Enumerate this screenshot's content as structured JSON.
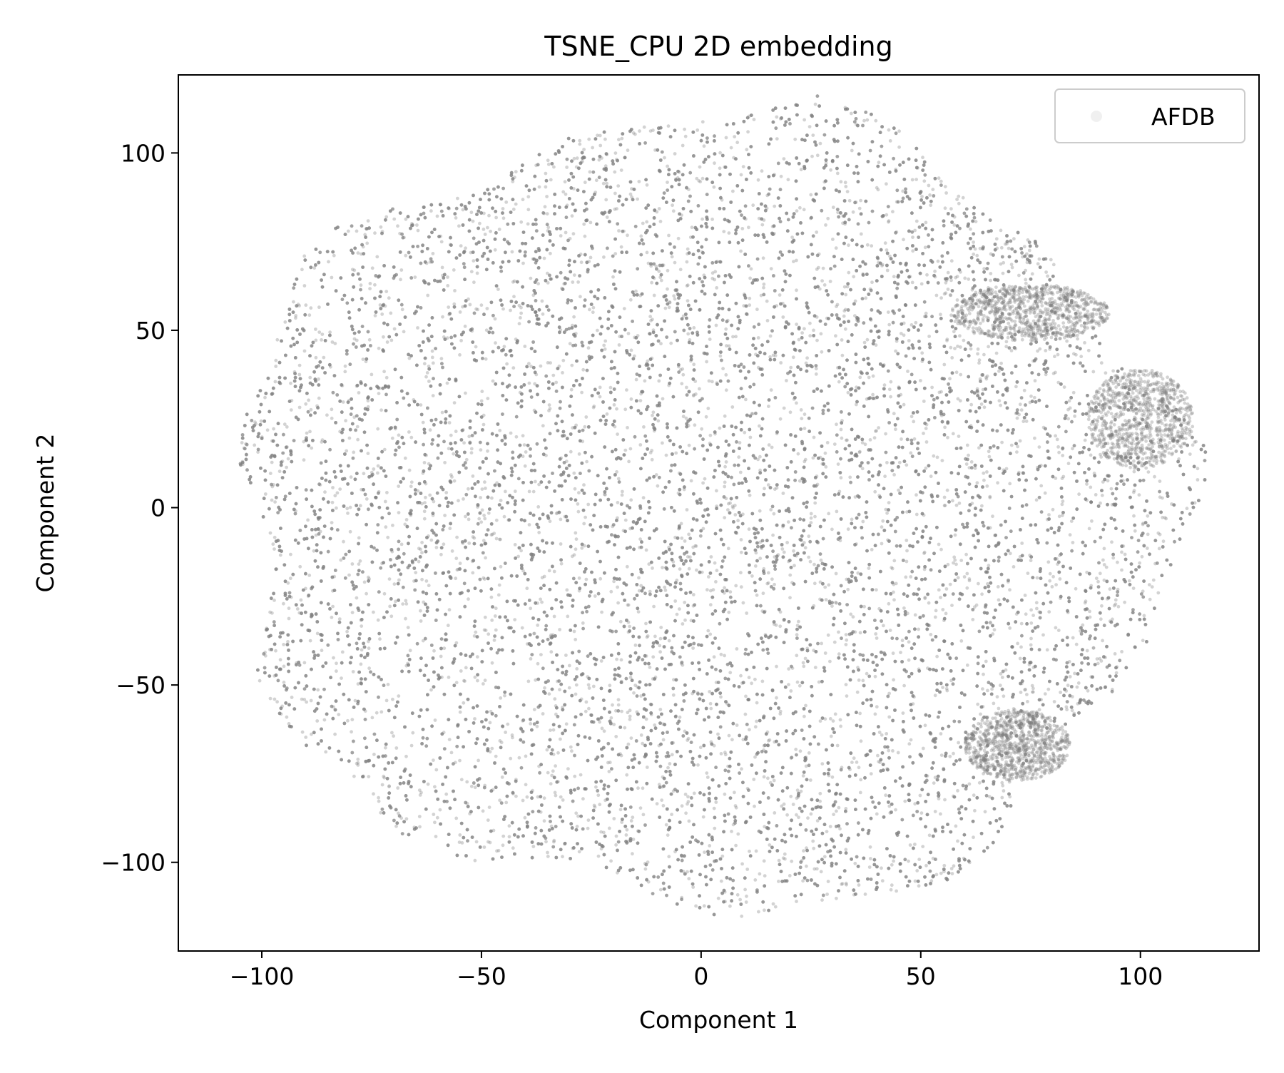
{
  "chart_data": {
    "type": "scatter",
    "title": "TSNE_CPU 2D embedding",
    "xlabel": "Component 1",
    "ylabel": "Component 2",
    "xlim": [
      -119,
      127
    ],
    "ylim": [
      -125,
      122
    ],
    "xticks": [
      -100,
      -50,
      0,
      50,
      100
    ],
    "yticks": [
      -100,
      -50,
      0,
      50,
      100
    ],
    "xtick_labels": [
      "−100",
      "−50",
      "0",
      "50",
      "100"
    ],
    "ytick_labels": [
      "−100",
      "−50",
      "0",
      "50",
      "100"
    ],
    "grid": false,
    "legend_position": "top-right",
    "series": [
      {
        "name": "AFDB",
        "color": "#808080",
        "marker": "point",
        "alpha": 0.35,
        "extent": {
          "x": [
            -107,
            115
          ],
          "y": [
            -113,
            111
          ]
        },
        "center": [
          0,
          0
        ]
      }
    ]
  }
}
